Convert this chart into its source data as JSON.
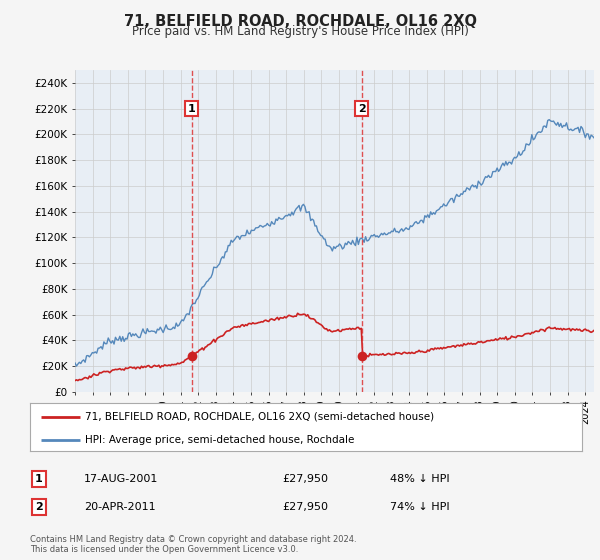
{
  "title": "71, BELFIELD ROAD, ROCHDALE, OL16 2XQ",
  "subtitle": "Price paid vs. HM Land Registry's House Price Index (HPI)",
  "background_color": "#f5f5f5",
  "plot_bg_color": "#e8eef5",
  "hpi_color": "#5588bb",
  "price_color": "#cc2222",
  "marker1_date": 2001.63,
  "marker1_price": 27950,
  "marker2_date": 2011.3,
  "marker2_price": 27950,
  "legend_line1": "71, BELFIELD ROAD, ROCHDALE, OL16 2XQ (semi-detached house)",
  "legend_line2": "HPI: Average price, semi-detached house, Rochdale",
  "table_row1": [
    "1",
    "17-AUG-2001",
    "£27,950",
    "48% ↓ HPI"
  ],
  "table_row2": [
    "2",
    "20-APR-2011",
    "£27,950",
    "74% ↓ HPI"
  ],
  "footer": "Contains HM Land Registry data © Crown copyright and database right 2024.\nThis data is licensed under the Open Government Licence v3.0.",
  "ylim": [
    0,
    250000
  ],
  "yticks": [
    0,
    20000,
    40000,
    60000,
    80000,
    100000,
    120000,
    140000,
    160000,
    180000,
    200000,
    220000,
    240000
  ],
  "ytick_labels": [
    "£0",
    "£20K",
    "£40K",
    "£60K",
    "£80K",
    "£100K",
    "£120K",
    "£140K",
    "£160K",
    "£180K",
    "£200K",
    "£220K",
    "£240K"
  ],
  "xmin": 1995,
  "xmax": 2024.5,
  "grid_color": "#cccccc",
  "vline_color": "#dd3333"
}
